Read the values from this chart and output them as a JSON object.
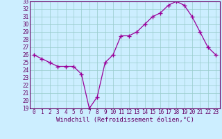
{
  "x": [
    0,
    1,
    2,
    3,
    4,
    5,
    6,
    7,
    8,
    9,
    10,
    11,
    12,
    13,
    14,
    15,
    16,
    17,
    18,
    19,
    20,
    21,
    22,
    23
  ],
  "y": [
    26,
    25.5,
    25,
    24.5,
    24.5,
    24.5,
    23.5,
    19,
    20.5,
    25,
    26,
    28.5,
    28.5,
    29,
    30,
    31,
    31.5,
    32.5,
    33,
    32.5,
    31,
    29,
    27,
    26
  ],
  "line_color": "#990099",
  "marker": "+",
  "marker_size": 4,
  "bg_color": "#cceeff",
  "grid_color": "#99cccc",
  "xlabel": "Windchill (Refroidissement éolien,°C)",
  "ylim": [
    19,
    33
  ],
  "xlim": [
    -0.5,
    23.5
  ],
  "yticks": [
    19,
    20,
    21,
    22,
    23,
    24,
    25,
    26,
    27,
    28,
    29,
    30,
    31,
    32,
    33
  ],
  "xticks": [
    0,
    1,
    2,
    3,
    4,
    5,
    6,
    7,
    8,
    9,
    10,
    11,
    12,
    13,
    14,
    15,
    16,
    17,
    18,
    19,
    20,
    21,
    22,
    23
  ],
  "tick_color": "#660066",
  "label_color": "#660066",
  "label_fontsize": 6.5,
  "tick_fontsize": 5.5,
  "spine_color": "#660066"
}
